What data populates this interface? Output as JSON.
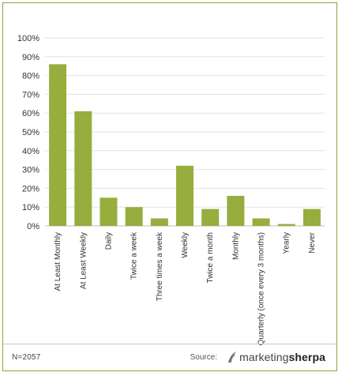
{
  "chart_data": {
    "type": "bar",
    "title": "",
    "xlabel": "",
    "ylabel": "",
    "ylim": [
      0,
      100
    ],
    "yticks": [
      "0%",
      "10%",
      "20%",
      "30%",
      "40%",
      "50%",
      "60%",
      "70%",
      "80%",
      "90%",
      "100%"
    ],
    "grid": true,
    "categories": [
      "At Least Monthly",
      "At Least Weekly",
      "Daily",
      "Twice a week",
      "Three times a week",
      "Weekly",
      "Twice a month",
      "Monthly",
      "Quarterly (once every 3 months)",
      "Yearly",
      "Never"
    ],
    "values": [
      86,
      61,
      15,
      10,
      4,
      32,
      9,
      16,
      4,
      1,
      9
    ],
    "bar_color": "#97ad3e"
  },
  "footer": {
    "sample_size": "N=2057",
    "source_label": "Source:",
    "logo_text_plain": "marketing",
    "logo_text_bold": "sherpa"
  }
}
